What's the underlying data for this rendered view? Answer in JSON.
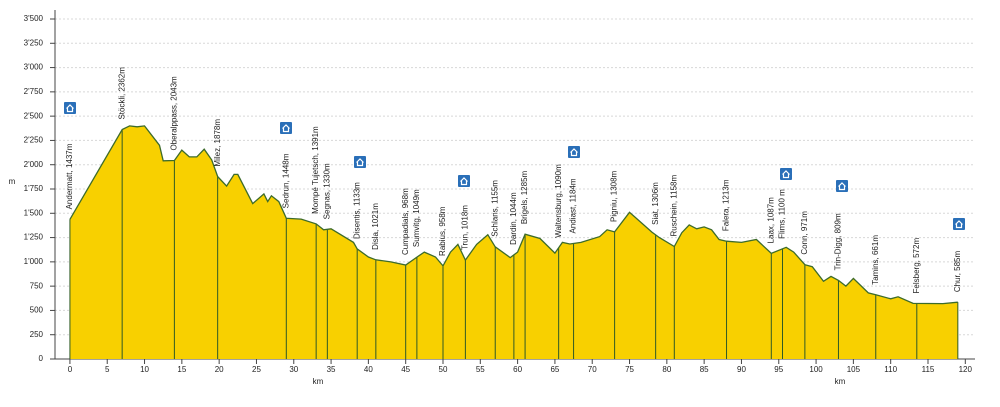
{
  "chart_data": {
    "type": "area",
    "y_label": "m",
    "x_labels": [
      "km",
      "km"
    ],
    "color": "#f8d000",
    "line_color": "#3d6b2a",
    "grid": true,
    "xlim": [
      -2,
      121.3
    ],
    "ylim": [
      0,
      3500
    ],
    "xticks": [
      0,
      5,
      10,
      15,
      20,
      25,
      30,
      35,
      40,
      45,
      50,
      55,
      60,
      65,
      70,
      75,
      80,
      85,
      90,
      95,
      100,
      105,
      110,
      115,
      120
    ],
    "yticks": [
      0,
      250,
      500,
      750,
      {
        "value": 1000,
        "label": "1'000"
      },
      {
        "value": 1250,
        "label": "1'250"
      },
      {
        "value": 1500,
        "label": "1'500"
      },
      {
        "value": 1750,
        "label": "1'750"
      },
      {
        "value": 2000,
        "label": "2'000"
      },
      {
        "value": 2250,
        "label": "2'250"
      },
      {
        "value": 2500,
        "label": "2'500"
      },
      {
        "value": 2750,
        "label": "2'750"
      },
      {
        "value": 3000,
        "label": "3'000"
      },
      {
        "value": 3250,
        "label": "3'250"
      },
      {
        "value": 3500,
        "label": "3'500"
      }
    ],
    "x": [
      0,
      7,
      8,
      9,
      10,
      12,
      12.5,
      14,
      15,
      16,
      17,
      18,
      19,
      19.8,
      21,
      22,
      22.5,
      24.5,
      26,
      26.5,
      27,
      28,
      29,
      31,
      33,
      34,
      35,
      38,
      38.5,
      40,
      41,
      43,
      45,
      46.5,
      47.5,
      49,
      50,
      51,
      52,
      53,
      54.5,
      56,
      57,
      59,
      60,
      61,
      63,
      65,
      66,
      67,
      68.5,
      71,
      72,
      73,
      75,
      78,
      79,
      81,
      82,
      83,
      84,
      85,
      86,
      87,
      88,
      90,
      92,
      94,
      96,
      97,
      98.5,
      99.5,
      101,
      102,
      103,
      104,
      105,
      107,
      108,
      110,
      111,
      113,
      117,
      119
    ],
    "values": [
      1437,
      2362,
      2400,
      2390,
      2400,
      2200,
      2040,
      2043,
      2150,
      2080,
      2080,
      2160,
      2050,
      1878,
      1780,
      1900,
      1900,
      1600,
      1700,
      1620,
      1680,
      1620,
      1448,
      1440,
      1391,
      1330,
      1340,
      1200,
      1133,
      1050,
      1021,
      1000,
      968,
      1049,
      1100,
      1050,
      958,
      1100,
      1180,
      1018,
      1180,
      1280,
      1155,
      1044,
      1100,
      1285,
      1240,
      1090,
      1200,
      1184,
      1200,
      1260,
      1330,
      1308,
      1510,
      1306,
      1250,
      1158,
      1300,
      1380,
      1340,
      1360,
      1330,
      1230,
      1213,
      1200,
      1230,
      1087,
      1150,
      1100,
      971,
      950,
      800,
      850,
      809,
      750,
      830,
      680,
      661,
      620,
      640,
      572,
      570,
      585
    ],
    "waypoints": [
      {
        "km": 0,
        "label": "Andermatt, 1437m"
      },
      {
        "km": 7,
        "label": "Stöckli, 2362m"
      },
      {
        "km": 14,
        "label": "Oberalppass, 2043m"
      },
      {
        "km": 19.8,
        "label": "Milez, 1878m"
      },
      {
        "km": 29,
        "label": "Sedrun, 1448m"
      },
      {
        "km": 33,
        "label": "Mompé Tujetsch, 1391m"
      },
      {
        "km": 34.5,
        "label": "Segnas, 1330m"
      },
      {
        "km": 38.5,
        "label": "Disentis, 1133m"
      },
      {
        "km": 41,
        "label": "Disla, 1021m"
      },
      {
        "km": 45,
        "label": "Cumpadials, 968m"
      },
      {
        "km": 46.5,
        "label": "Sumvitg, 1049m"
      },
      {
        "km": 50,
        "label": "Rabius, 958m"
      },
      {
        "km": 53,
        "label": "Trun, 1018m"
      },
      {
        "km": 57,
        "label": "Schlans, 1155m"
      },
      {
        "km": 59.5,
        "label": "Dardin, 1044m"
      },
      {
        "km": 61,
        "label": "Brigels, 1285m"
      },
      {
        "km": 65.5,
        "label": "Waltensburg, 1090m"
      },
      {
        "km": 67.5,
        "label": "Andiast, 1184m"
      },
      {
        "km": 73,
        "label": "Pigniu, 1308m"
      },
      {
        "km": 78.5,
        "label": "Siat, 1306m"
      },
      {
        "km": 81,
        "label": "Ruschein, 1158m"
      },
      {
        "km": 88,
        "label": "Falera, 1213m"
      },
      {
        "km": 94,
        "label": "Laax, 1087m"
      },
      {
        "km": 95.5,
        "label": "Flims, 1100 m"
      },
      {
        "km": 98.5,
        "label": "Conn, 971m"
      },
      {
        "km": 103,
        "label": "Trin-Digg, 809m"
      },
      {
        "km": 108,
        "label": "Tamins, 661m"
      },
      {
        "km": 113.5,
        "label": "Felsberg, 572m"
      },
      {
        "km": 119,
        "label": "Chur, 585m"
      }
    ]
  }
}
